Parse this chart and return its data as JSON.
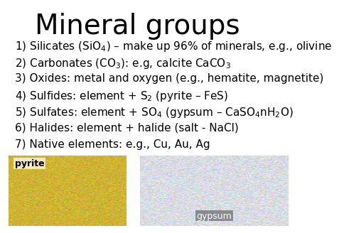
{
  "title": "Mineral groups",
  "title_fontsize": 28,
  "title_fontfamily": "DejaVu Sans",
  "background_color": "#ffffff",
  "text_color": "#000000",
  "lines": [
    "1) Silicates (SiO$_4$) – make up 96% of minerals, e.g., olivine",
    "2) Carbonates (CO$_3$): e.g, calcite CaCO$_3$",
    "3) Oxides: metal and oxygen (e.g., hematite, magnetite)",
    "4) Sulfides: element + S$_2$ (pyrite – FeS)",
    "5) Sulfates: element + SO$_4$ (gypsum – CaSO$_4$nH$_2$O)",
    "6) Halides: element + halide (salt - NaCl)",
    "7) Native elements: e.g., Cu, Au, Ag"
  ],
  "line_fontsize": 11,
  "pyrite_label": "pyrite",
  "gypsum_label": "gypsum",
  "pyrite_color_avg": "#b8a040",
  "gypsum_color_avg": "#c0c8d0"
}
